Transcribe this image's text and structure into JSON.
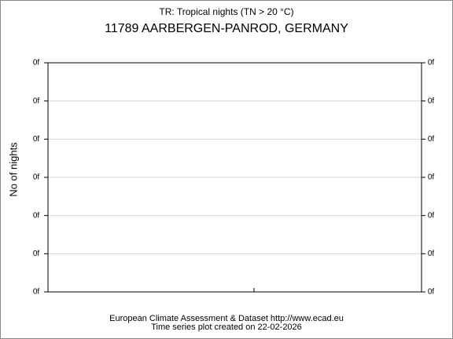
{
  "chart_data": {
    "type": "line",
    "title": "TR: Tropical nights (TN > 20 °C)",
    "subtitle": "11789 AARBERGEN-PANROD, GERMANY",
    "y_label": "No of nights",
    "series": [],
    "ylim": [
      0,
      6
    ],
    "yticks": [
      {
        "value": 0,
        "label": "0f"
      },
      {
        "value": 1,
        "label": "0f"
      },
      {
        "value": 2,
        "label": "0f"
      },
      {
        "value": 3,
        "label": "0f"
      },
      {
        "value": 4,
        "label": "0f"
      },
      {
        "value": 5,
        "label": "0f"
      },
      {
        "value": 6,
        "label": "0f"
      }
    ],
    "y2lim": [
      0,
      6
    ],
    "y2ticks": [
      {
        "value": 0,
        "label": "0f"
      },
      {
        "value": 1,
        "label": "0f"
      },
      {
        "value": 2,
        "label": "0f"
      },
      {
        "value": 3,
        "label": "0f"
      },
      {
        "value": 4,
        "label": "0f"
      },
      {
        "value": 5,
        "label": "0f"
      },
      {
        "value": 6,
        "label": "0f"
      }
    ],
    "grid": true,
    "footer": [
      "European Climate Assessment & Dataset  http://www.ecad.eu",
      "Time series plot created on 22-02-2026"
    ]
  }
}
